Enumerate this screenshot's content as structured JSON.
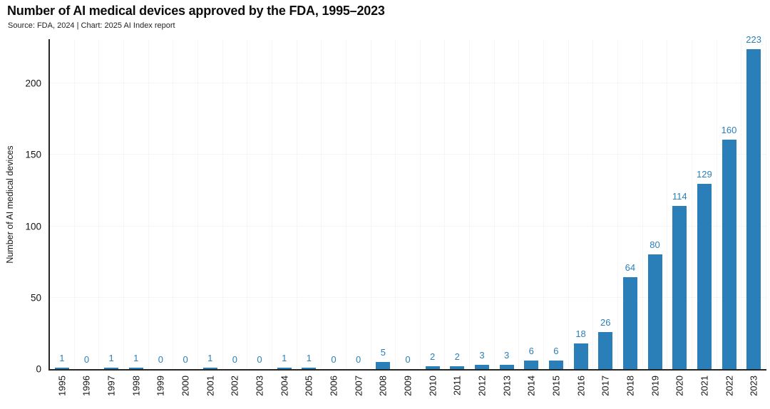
{
  "header": {
    "title": "Number of AI medical devices approved by the FDA, 1995–2023",
    "subtitle": "Source: FDA, 2024 | Chart: 2025 AI Index report"
  },
  "colors": {
    "bar": "#2b7fb9",
    "value_label": "#2b7fb9",
    "axis": "#262626",
    "grid": "#f6f4f4",
    "title_text": "#0d0d0d"
  },
  "chart_data": {
    "type": "bar",
    "title": "Number of AI medical devices approved by the FDA, 1995–2023",
    "subtitle": "Source: FDA, 2024 | Chart: 2025 AI Index report",
    "categories": [
      "1995",
      "1996",
      "1997",
      "1998",
      "1999",
      "2000",
      "2001",
      "2002",
      "2003",
      "2004",
      "2005",
      "2006",
      "2007",
      "2008",
      "2009",
      "2010",
      "2011",
      "2012",
      "2013",
      "2014",
      "2015",
      "2016",
      "2017",
      "2018",
      "2019",
      "2020",
      "2021",
      "2022",
      "2023"
    ],
    "values": [
      1,
      0,
      1,
      1,
      0,
      0,
      1,
      0,
      0,
      1,
      1,
      0,
      0,
      5,
      0,
      2,
      2,
      3,
      3,
      6,
      6,
      18,
      26,
      64,
      80,
      114,
      129,
      160,
      223
    ],
    "xlabel": "",
    "ylabel": "Number of AI medical devices",
    "yticks": [
      0,
      50,
      100,
      150,
      200
    ],
    "ylim": [
      0,
      231
    ],
    "grid": "faint horizontal lines at y-ticks and faint vertical lines at category boundaries",
    "legend": "none",
    "bar_value_labels": true,
    "x_tick_rotation_deg": 90
  }
}
